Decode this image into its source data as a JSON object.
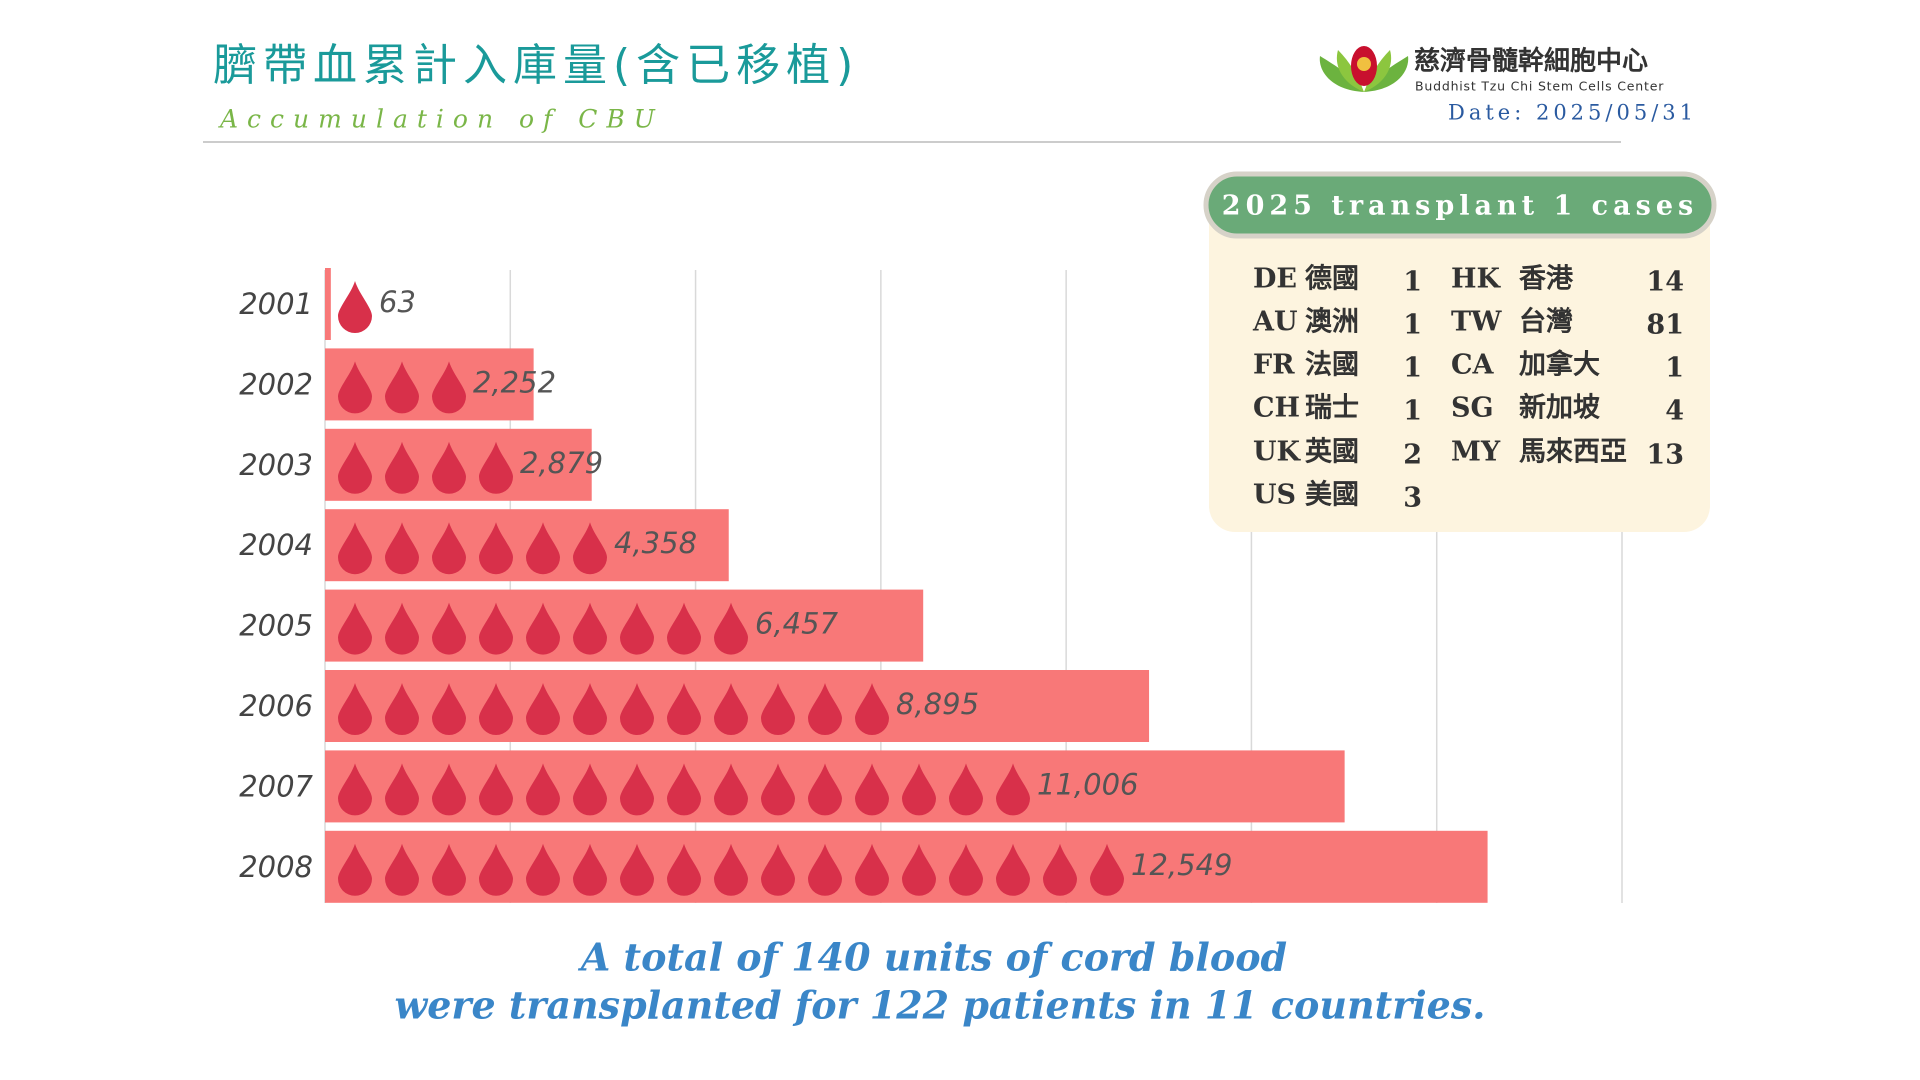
{
  "header": {
    "title": "臍帶血累計入庫量(含已移植)",
    "subtitle": "Accumulation of CBU",
    "org_name": "慈濟骨髓幹細胞中心",
    "org_name_en": "Buddhist Tzu Chi Stem Cells Center",
    "date": "Date: 2025/05/31"
  },
  "chart_data": {
    "type": "bar",
    "orientation": "horizontal",
    "categories": [
      "2001",
      "2002",
      "2003",
      "2004",
      "2005",
      "2006",
      "2007",
      "2008"
    ],
    "values": [
      63,
      2252,
      2879,
      4358,
      6457,
      8895,
      11006,
      12549
    ],
    "value_labels": [
      "63",
      "2,252",
      "2,879",
      "4,358",
      "6,457",
      "8,895",
      "11,006",
      "12,549"
    ],
    "color": "#f87878",
    "icon_color": "#d8304a",
    "xlim": [
      0,
      14000
    ],
    "xticks": [
      0,
      2000,
      4000,
      6000,
      8000,
      10000,
      12000,
      14000
    ],
    "grid": true
  },
  "panel": {
    "title": "2025 transplant 1 cases",
    "left": [
      {
        "code": "DE",
        "name": "德國",
        "count": 1
      },
      {
        "code": "AU",
        "name": "澳洲",
        "count": 1
      },
      {
        "code": "FR",
        "name": "法國",
        "count": 1
      },
      {
        "code": "CH",
        "name": "瑞士",
        "count": 1
      },
      {
        "code": "UK",
        "name": "英國",
        "count": 2
      },
      {
        "code": "US",
        "name": "美國",
        "count": 3
      }
    ],
    "right": [
      {
        "code": "HK",
        "name": "香港",
        "count": 14
      },
      {
        "code": "TW",
        "name": "台灣",
        "count": 81
      },
      {
        "code": "CA",
        "name": "加拿大",
        "count": 1
      },
      {
        "code": "SG",
        "name": "新加坡",
        "count": 4
      },
      {
        "code": "MY",
        "name": "馬來西亞",
        "count": 13
      }
    ]
  },
  "footer": {
    "line1": "A total of 140 units of cord blood",
    "line2": "were transplanted for 122 patients in 11 countries."
  }
}
